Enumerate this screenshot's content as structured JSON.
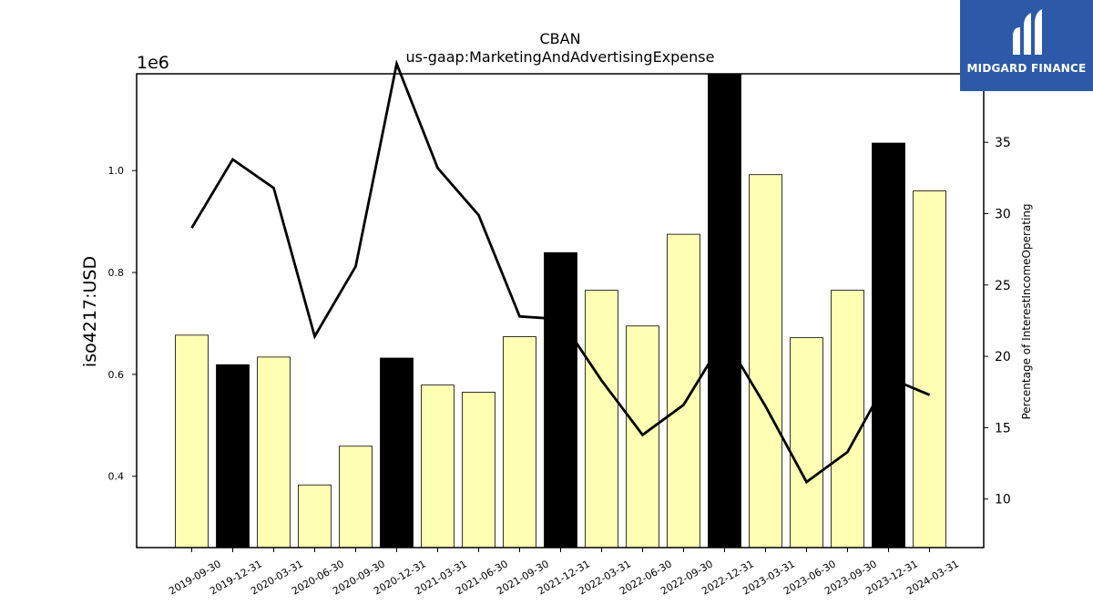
{
  "chart_data": {
    "type": "bar",
    "title": "CBAN",
    "subtitle": "us-gaap:MarketingAndAdvertisingExpense",
    "ylabel": "iso4217:USD",
    "y_scale_label": "1e6",
    "y2label": "Percentage of InterestIncomeOperating",
    "ylim": [
      260000,
      1190000
    ],
    "y2lim": [
      6.6,
      39.8
    ],
    "yticks": [
      0.4,
      0.6,
      0.8,
      1.0
    ],
    "y2ticks": [
      10,
      15,
      20,
      25,
      30,
      35
    ],
    "categories": [
      "2019-09-30",
      "2019-12-31",
      "2020-03-31",
      "2020-06-30",
      "2020-09-30",
      "2020-12-31",
      "2021-03-31",
      "2021-06-30",
      "2021-09-30",
      "2021-12-31",
      "2022-03-31",
      "2022-06-30",
      "2022-09-30",
      "2022-12-31",
      "2023-03-31",
      "2023-06-30",
      "2023-09-30",
      "2023-12-31",
      "2024-03-31"
    ],
    "series": [
      {
        "values": [
          677000,
          619000,
          634000,
          383000,
          459000,
          632000,
          579000,
          565000,
          674000,
          839000,
          765000,
          695000,
          875000,
          1190000,
          992000,
          672000,
          765000,
          1054000,
          960000
        ],
        "highlight": [
          false,
          true,
          false,
          false,
          false,
          true,
          false,
          false,
          false,
          true,
          false,
          false,
          false,
          true,
          false,
          false,
          false,
          true,
          false
        ]
      },
      {
        "axis": "right",
        "type": "line",
        "values": [
          29.0,
          33.8,
          31.8,
          21.4,
          26.3,
          40.5,
          33.2,
          29.9,
          22.8,
          22.6,
          18.3,
          14.5,
          16.6,
          21.3,
          16.5,
          11.2,
          13.3,
          18.5,
          17.3
        ]
      }
    ],
    "colors": {
      "bar": "#ffffb3",
      "highlight_bar": "#000000",
      "line": "#000000"
    }
  },
  "logo": {
    "text": "MIDGARD FINANCE"
  }
}
